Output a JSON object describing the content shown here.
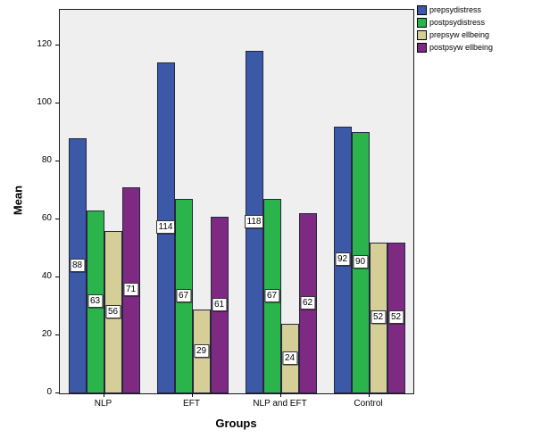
{
  "chart_data": {
    "type": "bar",
    "title": "",
    "xlabel": "Groups",
    "ylabel": "Mean",
    "categories": [
      "NLP",
      "EFT",
      "NLP and EFT",
      "Control"
    ],
    "series": [
      {
        "name": "prepsydistress",
        "color": "#3C59A8",
        "values": [
          88,
          114,
          118,
          92
        ]
      },
      {
        "name": "postpsydistress",
        "color": "#2BB34C",
        "values": [
          63,
          67,
          67,
          90
        ]
      },
      {
        "name": "prepsyw ellbeing",
        "color": "#D6CE97",
        "values": [
          56,
          29,
          24,
          52
        ]
      },
      {
        "name": "postpsyw ellbeing",
        "color": "#7E2A83",
        "values": [
          71,
          61,
          62,
          52
        ]
      }
    ],
    "yticks": [
      0,
      20,
      40,
      60,
      80,
      100,
      120
    ],
    "ylim": [
      0,
      132
    ],
    "grid": false,
    "legend_position": "top-right",
    "data_labels": true,
    "plot_background": "#efefef",
    "bar_border_color": "#262640"
  }
}
